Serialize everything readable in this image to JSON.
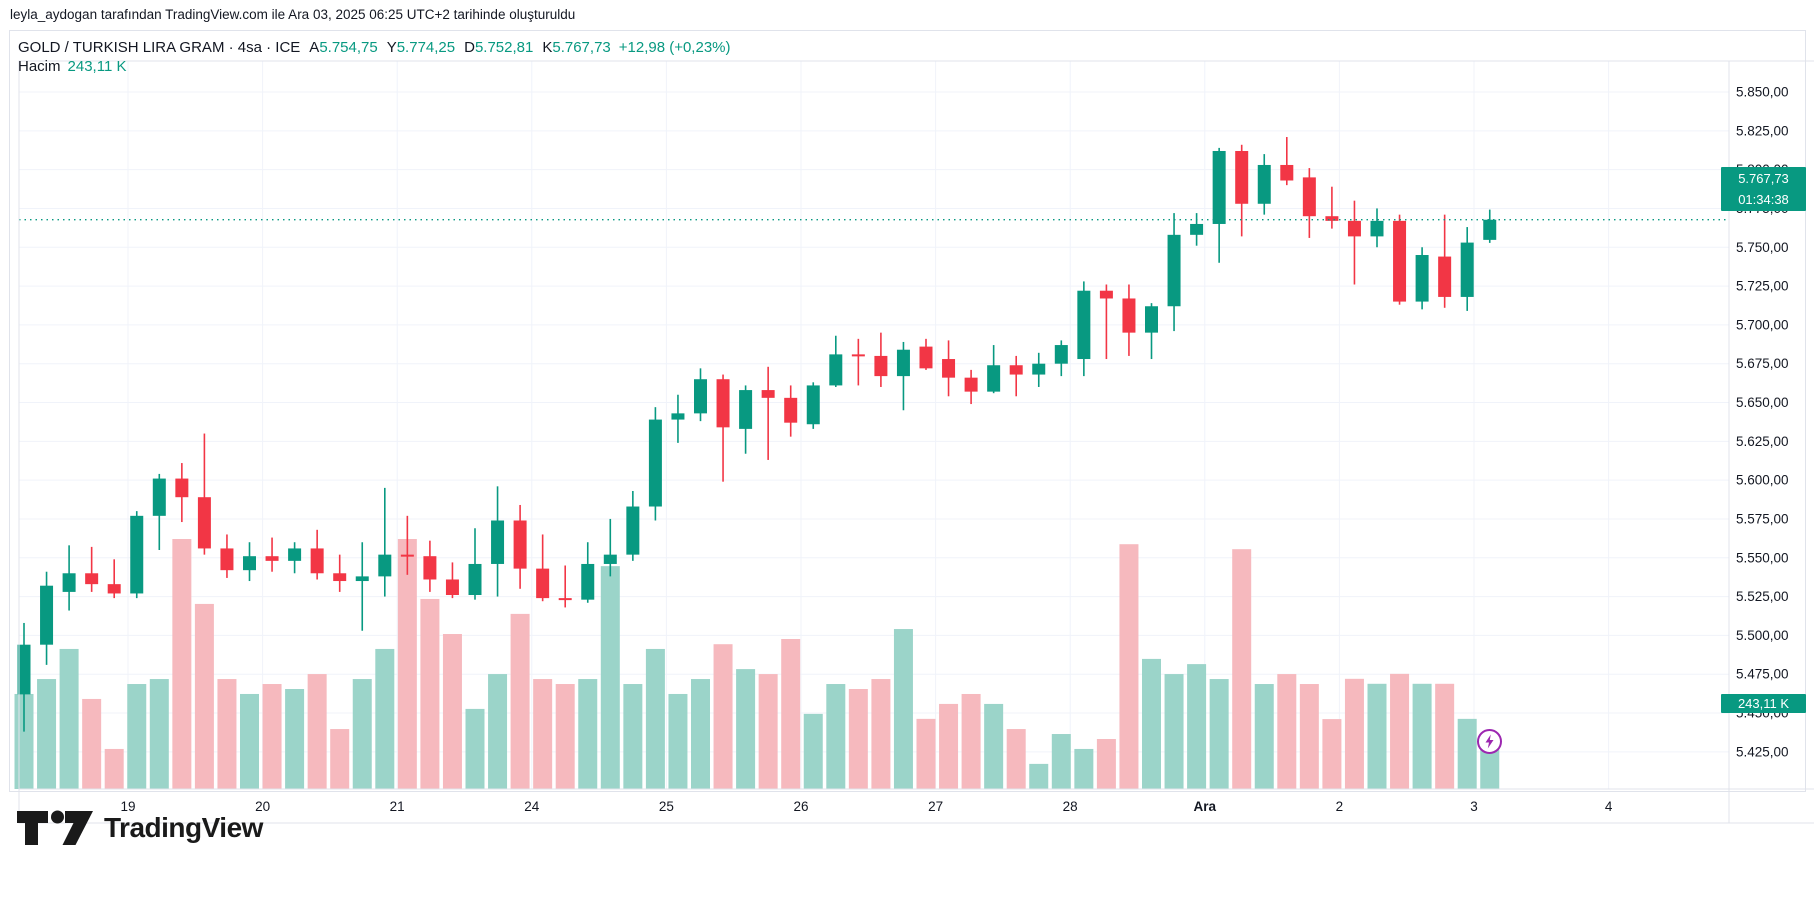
{
  "attribution": "leyla_aydogan tarafından TradingView.com ile Ara 03, 2025 06:25 UTC+2 tarihinde oluşturuldu",
  "header": {
    "symbol": "GOLD / TURKISH LIRA GRAM · 4sa · ICE",
    "ohlc": [
      {
        "label": "A",
        "value": "5.754,75"
      },
      {
        "label": "Y",
        "value": "5.774,25"
      },
      {
        "label": "D",
        "value": "5.752,81"
      },
      {
        "label": "K",
        "value": "5.767,73"
      }
    ],
    "change": "+12,98 (+0,23%)",
    "volume_label": "Hacim",
    "volume_value": "243,11 K"
  },
  "price_badge": {
    "price": "5.767,73",
    "countdown": "01:34:38"
  },
  "volume_badge": {
    "value": "243,11 K"
  },
  "logo": {
    "text": "TradingView"
  },
  "marker_icon": "lightning-bolt-icon",
  "colors": {
    "up": "#089981",
    "down": "#f23645",
    "vol_up": "#9bd4c9",
    "vol_down": "#f6b9be",
    "grid": "#f0f3fa",
    "border": "#e0e3eb",
    "text": "#131722",
    "badge_bg": "#089981",
    "price_line": "#089981",
    "marker": "#9c27b0"
  },
  "price_axis": {
    "ticks": [
      {
        "value": 5850,
        "label": "5.850,00"
      },
      {
        "value": 5825,
        "label": "5.825,00"
      },
      {
        "value": 5800,
        "label": "5.800,00"
      },
      {
        "value": 5775,
        "label": "5.775,00"
      },
      {
        "value": 5750,
        "label": "5.750,00"
      },
      {
        "value": 5725,
        "label": "5.725,00"
      },
      {
        "value": 5700,
        "label": "5.700,00"
      },
      {
        "value": 5675,
        "label": "5.675,00"
      },
      {
        "value": 5650,
        "label": "5.650,00"
      },
      {
        "value": 5625,
        "label": "5.625,00"
      },
      {
        "value": 5600,
        "label": "5.600,00"
      },
      {
        "value": 5575,
        "label": "5.575,00"
      },
      {
        "value": 5550,
        "label": "5.550,00"
      },
      {
        "value": 5525,
        "label": "5.525,00"
      },
      {
        "value": 5500,
        "label": "5.500,00"
      },
      {
        "value": 5475,
        "label": "5.475,00"
      },
      {
        "value": 5450,
        "label": "5.450,00"
      },
      {
        "value": 5425,
        "label": "5.425,00"
      }
    ]
  },
  "time_axis": {
    "ticks": [
      {
        "label": "19",
        "bold": false
      },
      {
        "label": "20",
        "bold": false
      },
      {
        "label": "21",
        "bold": false
      },
      {
        "label": "24",
        "bold": false
      },
      {
        "label": "25",
        "bold": false
      },
      {
        "label": "26",
        "bold": false
      },
      {
        "label": "27",
        "bold": false
      },
      {
        "label": "28",
        "bold": false
      },
      {
        "label": "Ara",
        "bold": true
      },
      {
        "label": "2",
        "bold": false
      },
      {
        "label": "3",
        "bold": false
      },
      {
        "label": "4",
        "bold": false
      }
    ]
  },
  "chart_data": {
    "type": "candlestick_with_volume",
    "title": "GOLD / TURKISH LIRA GRAM · 4sa · ICE",
    "timeframe": "4 hours",
    "y_range": [
      5425,
      5850
    ],
    "grid": true,
    "price_line_value": 5767.73,
    "last_bar": {
      "open": 5754.75,
      "high": 5774.25,
      "low": 5752.81,
      "close": 5767.73,
      "volume_k": 243.11
    },
    "volume_unit": "K",
    "candles_ohlcv": [
      [
        5462,
        5508,
        5438,
        5494,
        420
      ],
      [
        5494,
        5541,
        5481,
        5532,
        486
      ],
      [
        5528,
        5558,
        5516,
        5540,
        619
      ],
      [
        5540,
        5557,
        5528,
        5533,
        398
      ],
      [
        5533,
        5549,
        5524,
        5527,
        177
      ],
      [
        5527,
        5580,
        5524,
        5577,
        464
      ],
      [
        5577,
        5604,
        5555,
        5601,
        486
      ],
      [
        5601,
        5611,
        5573,
        5589,
        1105
      ],
      [
        5589,
        5630,
        5552,
        5556,
        818
      ],
      [
        5556,
        5565,
        5537,
        5542,
        486
      ],
      [
        5542,
        5560,
        5535,
        5551,
        420
      ],
      [
        5551,
        5563,
        5541,
        5548,
        464
      ],
      [
        5548,
        5560,
        5540,
        5556,
        442
      ],
      [
        5556,
        5568,
        5536,
        5540,
        508
      ],
      [
        5540,
        5552,
        5528,
        5535,
        265
      ],
      [
        5535,
        5560,
        5503,
        5538,
        486
      ],
      [
        5538,
        5595,
        5525,
        5552,
        619
      ],
      [
        5552,
        5577,
        5539,
        5551,
        1105
      ],
      [
        5551,
        5561,
        5528,
        5536,
        840
      ],
      [
        5536,
        5547,
        5524,
        5526,
        685
      ],
      [
        5526,
        5569,
        5523,
        5546,
        354
      ],
      [
        5546,
        5596,
        5525,
        5574,
        508
      ],
      [
        5574,
        5584,
        5530,
        5543,
        774
      ],
      [
        5543,
        5565,
        5522,
        5524,
        486
      ],
      [
        5524,
        5545,
        5518,
        5523,
        464
      ],
      [
        5523,
        5560,
        5521,
        5546,
        486
      ],
      [
        5546,
        5575,
        5538,
        5552,
        985
      ],
      [
        5552,
        5593,
        5548,
        5583,
        464
      ],
      [
        5583,
        5647,
        5574,
        5639,
        619
      ],
      [
        5639,
        5655,
        5624,
        5643,
        420
      ],
      [
        5643,
        5672,
        5638,
        5665,
        486
      ],
      [
        5665,
        5668,
        5599,
        5634,
        640
      ],
      [
        5633,
        5661,
        5617,
        5658,
        530
      ],
      [
        5658,
        5673,
        5613,
        5653,
        508
      ],
      [
        5653,
        5661,
        5628,
        5637,
        663
      ],
      [
        5636,
        5663,
        5633,
        5661,
        332
      ],
      [
        5661,
        5693,
        5660,
        5681,
        464
      ],
      [
        5681,
        5691,
        5661,
        5680,
        442
      ],
      [
        5680,
        5695,
        5660,
        5667,
        486
      ],
      [
        5667,
        5689,
        5645,
        5684,
        707
      ],
      [
        5686,
        5691,
        5671,
        5672,
        310
      ],
      [
        5678,
        5690,
        5654,
        5666,
        376
      ],
      [
        5666,
        5671,
        5649,
        5657,
        420
      ],
      [
        5657,
        5687,
        5656,
        5674,
        376
      ],
      [
        5674,
        5680,
        5654,
        5668,
        265
      ],
      [
        5668,
        5682,
        5660,
        5675,
        111
      ],
      [
        5675,
        5690,
        5667,
        5687,
        243
      ],
      [
        5678,
        5728,
        5667,
        5722,
        177
      ],
      [
        5722,
        5726,
        5678,
        5717,
        221
      ],
      [
        5717,
        5726,
        5680,
        5695,
        1082
      ],
      [
        5695,
        5714,
        5678,
        5712,
        575
      ],
      [
        5712,
        5772,
        5696,
        5758,
        508
      ],
      [
        5758,
        5772,
        5751,
        5765,
        552
      ],
      [
        5765,
        5814,
        5740,
        5812,
        486
      ],
      [
        5812,
        5816,
        5757,
        5778,
        1060
      ],
      [
        5778,
        5810,
        5771,
        5803,
        464
      ],
      [
        5803,
        5821,
        5790,
        5793,
        508
      ],
      [
        5795,
        5801,
        5756,
        5770,
        464
      ],
      [
        5770,
        5789,
        5762,
        5767,
        309
      ],
      [
        5767,
        5780,
        5726,
        5757,
        487
      ],
      [
        5757,
        5775,
        5750,
        5767,
        465
      ],
      [
        5767,
        5771,
        5713,
        5715,
        509
      ],
      [
        5715,
        5750,
        5710,
        5745,
        465
      ],
      [
        5744,
        5771,
        5711,
        5718,
        465
      ],
      [
        5718,
        5763,
        5709,
        5753,
        310
      ],
      [
        5754.75,
        5774.25,
        5752.81,
        5767.73,
        243.11
      ]
    ],
    "day_tick_labels": [
      "19",
      "20",
      "21",
      "24",
      "25",
      "26",
      "27",
      "28",
      "Ara",
      "2",
      "3",
      "4"
    ],
    "bars_per_day": 6,
    "legend_position": "top-left"
  }
}
